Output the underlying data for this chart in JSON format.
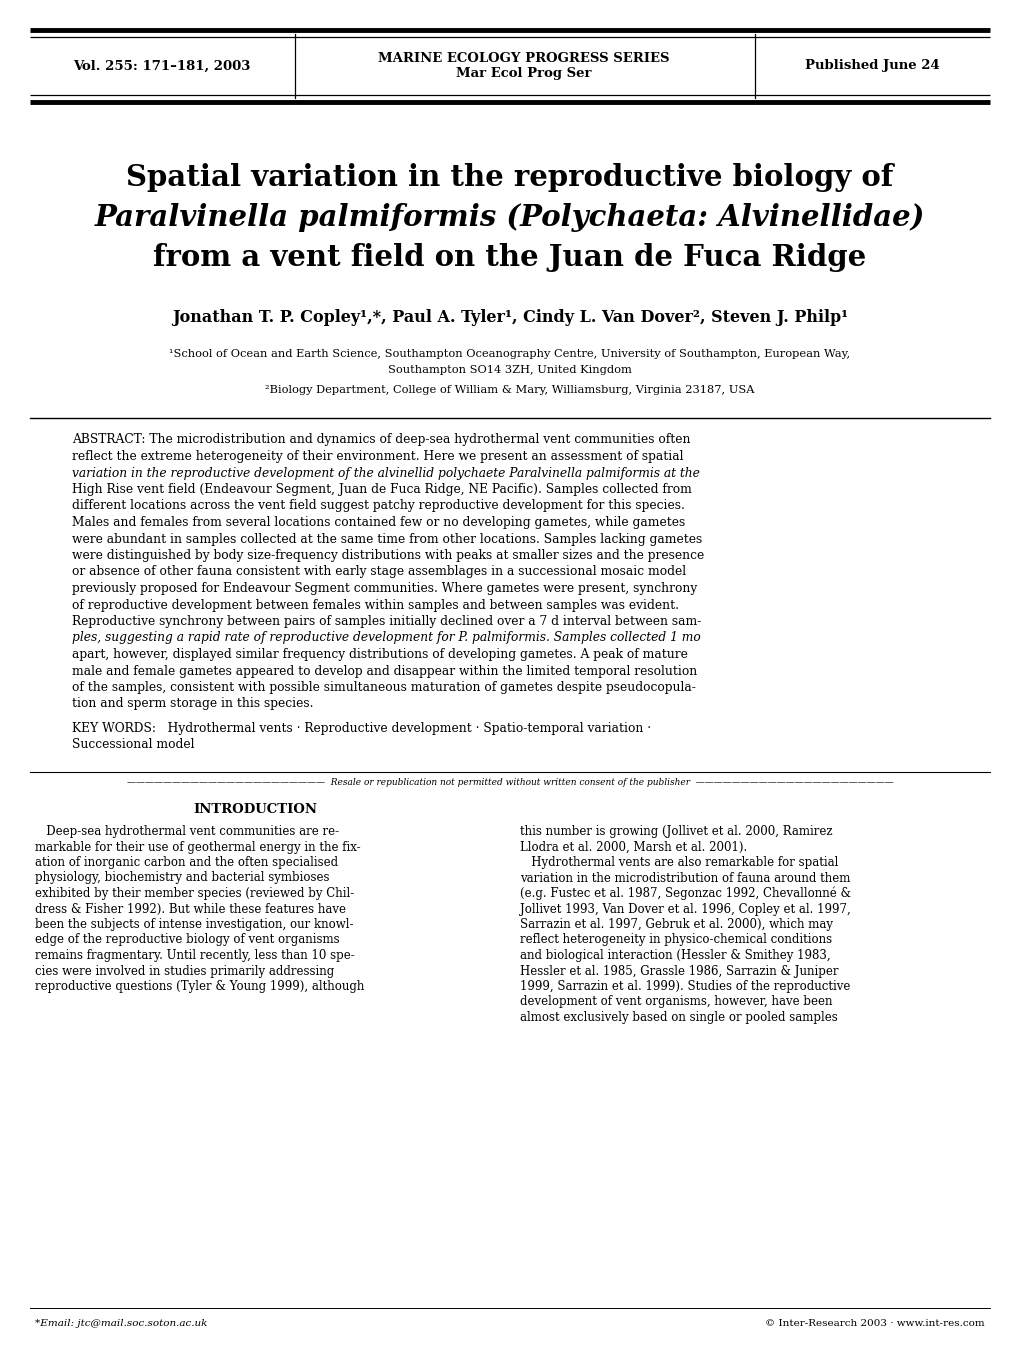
{
  "bg_color": "#ffffff",
  "header": {
    "left": "Vol. 255: 171–181, 2003",
    "center_top": "MARINE ECOLOGY PROGRESS SERIES",
    "center_bottom": "Mar Ecol Prog Ser",
    "right": "Published June 24"
  },
  "title_line1": "Spatial variation in the reproductive biology of",
  "title_line2_italic": "Paralvinella palmiformis",
  "title_line2_normal": " (Polychaeta: Alvinellidae)",
  "title_line3": "from a vent field on the Juan de Fuca Ridge",
  "author_line": "Jonathan T. P. Copley¹,*, Paul A. Tyler¹, Cindy L. Van Dover², Steven J. Philp¹",
  "affil1": "¹School of Ocean and Earth Science, Southampton Oceanography Centre, University of Southampton, European Way,",
  "affil1b": "Southampton SO14 3ZH, United Kingdom",
  "affil2": "²Biology Department, College of William & Mary, Williamsburg, Virginia 23187, USA",
  "abstract_lines": [
    {
      "text": "ABSTRACT: The microdistribution and dynamics of deep-sea hydrothermal vent communities often",
      "italic": false
    },
    {
      "text": "reflect the extreme heterogeneity of their environment. Here we present an assessment of spatial",
      "italic": false
    },
    {
      "text": "variation in the reproductive development of the alvinellid polychaete  Paralvinella palmiformis  at the",
      "italic": false,
      "has_italic_span": true,
      "italic_word": "Paralvinella palmiformis"
    },
    {
      "text": "High Rise vent field (Endeavour Segment, Juan de Fuca Ridge, NE Pacific). Samples collected from",
      "italic": false
    },
    {
      "text": "different locations across the vent field suggest patchy reproductive development for this species.",
      "italic": false
    },
    {
      "text": "Males and females from several locations contained few or no developing gametes, while gametes",
      "italic": false
    },
    {
      "text": "were abundant in samples collected at the same time from other locations. Samples lacking gametes",
      "italic": false
    },
    {
      "text": "were distinguished by body size-frequency distributions with peaks at smaller sizes and the presence",
      "italic": false
    },
    {
      "text": "or absence of other fauna consistent with early stage assemblages in a successional mosaic model",
      "italic": false
    },
    {
      "text": "previously proposed for Endeavour Segment communities. Where gametes were present, synchrony",
      "italic": false
    },
    {
      "text": "of reproductive development between females within samples and between samples was evident.",
      "italic": false
    },
    {
      "text": "Reproductive synchrony between pairs of samples initially declined over a 7 d interval between sam-",
      "italic": false
    },
    {
      "text": "ples, suggesting a rapid rate of reproductive development for  P. palmiformis . Samples collected 1 mo",
      "italic": false,
      "has_italic_span": true,
      "italic_word": "P. palmiformis"
    },
    {
      "text": "apart, however, displayed similar frequency distributions of developing gametes. A peak of mature",
      "italic": false
    },
    {
      "text": "male and female gametes appeared to develop and disappear within the limited temporal resolution",
      "italic": false
    },
    {
      "text": "of the samples, consistent with possible simultaneous maturation of gametes despite pseudocopula-",
      "italic": false
    },
    {
      "text": "tion and sperm storage in this species.",
      "italic": false
    }
  ],
  "kw_line1": "KEY WORDS:   Hydrothermal vents · Reproductive development · Spatio-temporal variation ·",
  "kw_line2": "Successional model",
  "resale_note": "Resale or republication not permitted without written consent of the publisher",
  "intro_heading": "INTRODUCTION",
  "intro_col1": [
    "   Deep-sea hydrothermal vent communities are re-",
    "markable for their use of geothermal energy in the fix-",
    "ation of inorganic carbon and the often specialised",
    "physiology, biochemistry and bacterial symbioses",
    "exhibited by their member species (reviewed by Chil-",
    "dress & Fisher 1992). But while these features have",
    "been the subjects of intense investigation, our knowl-",
    "edge of the reproductive biology of vent organisms",
    "remains fragmentary. Until recently, less than 10 spe-",
    "cies were involved in studies primarily addressing",
    "reproductive questions (Tyler & Young 1999), although"
  ],
  "intro_col2": [
    "this number is growing (Jollivet et al. 2000, Ramirez",
    "Llodra et al. 2000, Marsh et al. 2001).",
    "   Hydrothermal vents are also remarkable for spatial",
    "variation in the microdistribution of fauna around them",
    "(e.g. Fustec et al. 1987, Segonzac 1992, Chevallonné &",
    "Jollivet 1993, Van Dover et al. 1996, Copley et al. 1997,",
    "Sarrazin et al. 1997, Gebruk et al. 2000), which may",
    "reflect heterogeneity in physico-chemical conditions",
    "and biological interaction (Hessler & Smithey 1983,",
    "Hessler et al. 1985, Grassle 1986, Sarrazin & Juniper",
    "1999, Sarrazin et al. 1999). Studies of the reproductive",
    "development of vent organisms, however, have been",
    "almost exclusively based on single or pooled samples"
  ],
  "footnote_left": "*Email: jtc@mail.soc.soton.ac.uk",
  "footnote_right": "© Inter-Research 2003 · www.int-res.com"
}
